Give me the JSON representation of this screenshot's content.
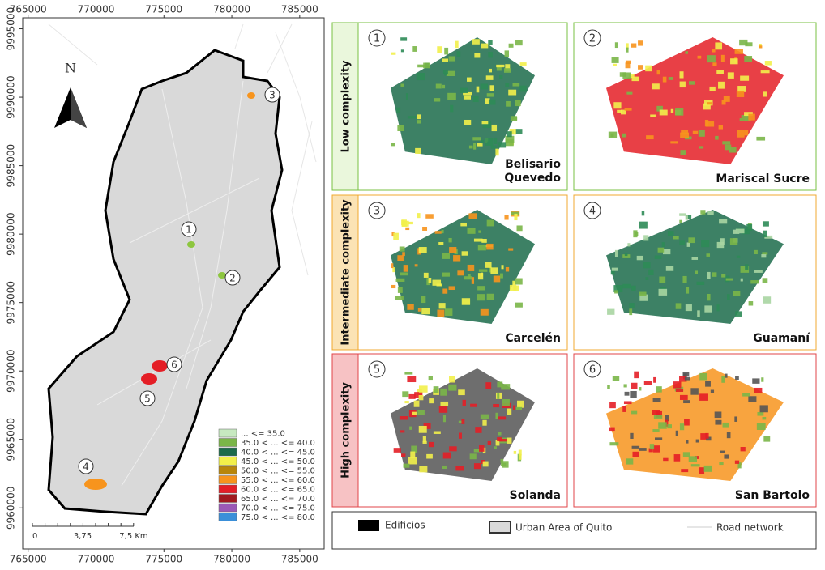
{
  "map": {
    "north": "N",
    "xlim": [
      764600,
      786800
    ],
    "ylim": [
      9957000,
      9995800
    ],
    "xticks": [
      765000,
      770000,
      775000,
      780000,
      785000
    ],
    "yticks": [
      9995000,
      9990000,
      9985000,
      9980000,
      9975000,
      9970000,
      9965000,
      9960000
    ],
    "sites": [
      {
        "label": "1",
        "color": "#8dc63f"
      },
      {
        "label": "2",
        "color": "#8dc63f"
      },
      {
        "label": "3",
        "color": "#f7941d"
      },
      {
        "label": "4",
        "color": "#f7941d"
      },
      {
        "label": "5",
        "color": "#e41e26"
      },
      {
        "label": "6",
        "color": "#e41e26"
      }
    ],
    "scale_bar": [
      "0",
      "3,75",
      "7,5 Km"
    ],
    "legend": [
      {
        "label": "... <= 35.0",
        "color": "#c7e9c0"
      },
      {
        "label": "35.0 < ... <= 40.0",
        "color": "#7ab648"
      },
      {
        "label": "40.0 < ... <= 45.0",
        "color": "#1b6b4a"
      },
      {
        "label": "45.0 < ... <= 50.0",
        "color": "#f2f04a"
      },
      {
        "label": "50.0 < ... <= 55.0",
        "color": "#b8860b"
      },
      {
        "label": "55.0 < ... <= 60.0",
        "color": "#f7941d"
      },
      {
        "label": "60.0 < ... <= 65.0",
        "color": "#e41e26"
      },
      {
        "label": "65.0 < ... <= 70.0",
        "color": "#a11a1f"
      },
      {
        "label": "70.0 < ... <= 75.0",
        "color": "#9b59b6"
      },
      {
        "label": "75.0 < ... <= 80.0",
        "color": "#3a8fd9"
      }
    ]
  },
  "panels": [
    {
      "label": "Low complexity",
      "color": "#7ac143",
      "fill": "#eaf7dc",
      "items": [
        {
          "number": "1",
          "name": "Belisario Quevedo"
        },
        {
          "number": "2",
          "name": "Mariscal Sucre"
        }
      ]
    },
    {
      "label": "Intermediate complexity",
      "color": "#f0a830",
      "fill": "#fbe3b5",
      "items": [
        {
          "number": "3",
          "name": "Carcelén"
        },
        {
          "number": "4",
          "name": "Guamaní"
        }
      ]
    },
    {
      "label": "High complexity",
      "color": "#e0454a",
      "fill": "#f7c2c4",
      "items": [
        {
          "number": "5",
          "name": "Solanda"
        },
        {
          "number": "6",
          "name": "San Bartolo"
        }
      ]
    }
  ],
  "footer_legend": [
    "Edificios",
    "Urban Area of Quito",
    "Road network"
  ]
}
